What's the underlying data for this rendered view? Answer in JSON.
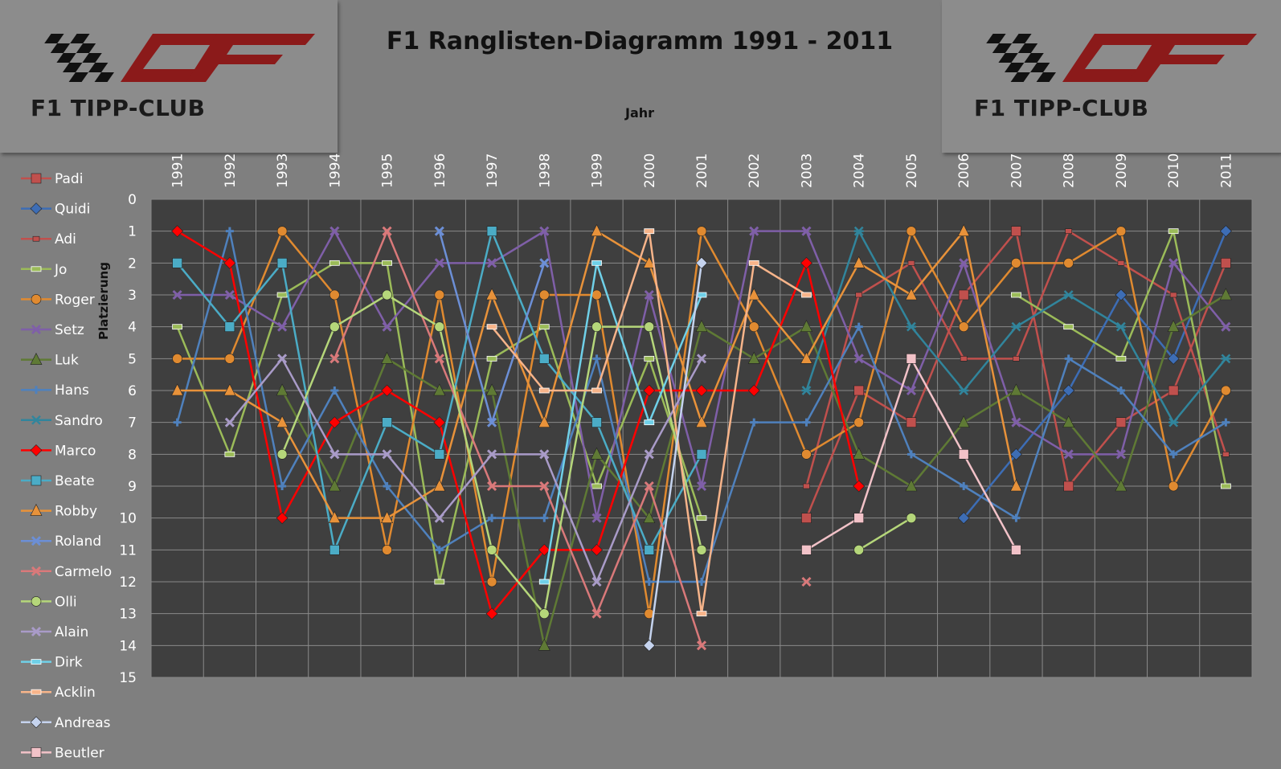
{
  "header": {
    "title": "F1 Ranglisten-Diagramm 1991 - 2011",
    "logo_text": "F1 TIPP-CLUB"
  },
  "chart_data": {
    "type": "line",
    "title": "F1 Ranglisten-Diagramm 1991 - 2011",
    "xlabel": "Jahr",
    "ylabel": "Platzierung",
    "x": [
      "1991",
      "1992",
      "1993",
      "1994",
      "1995",
      "1996",
      "1997",
      "1998",
      "1999",
      "2000",
      "2001",
      "2002",
      "2003",
      "2004",
      "2005",
      "2006",
      "2007",
      "2008",
      "2009",
      "2010",
      "2011"
    ],
    "y_ticks": [
      0,
      1,
      2,
      3,
      4,
      5,
      6,
      7,
      8,
      9,
      10,
      11,
      12,
      13,
      14,
      15
    ],
    "ylim": [
      0,
      15
    ],
    "y_inverted": true,
    "grid": true,
    "legend_position": "left",
    "series": [
      {
        "name": "Padi",
        "color": "#c0504d",
        "marker": "square",
        "values": [
          null,
          null,
          null,
          null,
          null,
          null,
          null,
          null,
          null,
          null,
          null,
          null,
          10,
          6,
          7,
          3,
          1,
          9,
          7,
          6,
          2
        ]
      },
      {
        "name": "Quidi",
        "color": "#3d6db5",
        "marker": "diamond",
        "values": [
          null,
          null,
          null,
          null,
          null,
          null,
          null,
          null,
          null,
          null,
          null,
          null,
          null,
          null,
          null,
          10,
          8,
          6,
          3,
          5,
          1
        ]
      },
      {
        "name": "Adi",
        "color": "#c0504d",
        "marker": "smallsquare",
        "values": [
          null,
          null,
          null,
          null,
          null,
          null,
          null,
          null,
          null,
          null,
          null,
          null,
          9,
          3,
          2,
          5,
          5,
          1,
          2,
          3,
          8
        ]
      },
      {
        "name": "Jo",
        "color": "#9bbb59",
        "marker": "dash",
        "values": [
          4,
          8,
          3,
          2,
          2,
          12,
          5,
          4,
          9,
          5,
          10,
          null,
          null,
          null,
          null,
          null,
          3,
          4,
          5,
          1,
          9
        ]
      },
      {
        "name": "Roger",
        "color": "#e08a30",
        "marker": "circle",
        "values": [
          5,
          5,
          1,
          3,
          11,
          3,
          12,
          3,
          3,
          13,
          1,
          4,
          8,
          7,
          1,
          4,
          2,
          2,
          1,
          9,
          6
        ]
      },
      {
        "name": "Setz",
        "color": "#7f5fa8",
        "marker": "x",
        "values": [
          3,
          3,
          4,
          1,
          4,
          2,
          2,
          1,
          10,
          3,
          9,
          1,
          1,
          5,
          6,
          2,
          7,
          8,
          8,
          2,
          4
        ]
      },
      {
        "name": "Luk",
        "color": "#5f7a35",
        "marker": "triangle",
        "values": [
          null,
          null,
          6,
          9,
          5,
          6,
          6,
          14,
          8,
          10,
          4,
          5,
          4,
          8,
          9,
          7,
          6,
          7,
          9,
          4,
          3
        ]
      },
      {
        "name": "Hans",
        "color": "#4f81bd",
        "marker": "plus",
        "values": [
          7,
          1,
          9,
          6,
          9,
          11,
          10,
          10,
          5,
          12,
          12,
          7,
          7,
          4,
          8,
          9,
          10,
          5,
          6,
          8,
          7
        ]
      },
      {
        "name": "Sandro",
        "color": "#31859c",
        "marker": "star",
        "values": [
          null,
          null,
          null,
          null,
          null,
          null,
          null,
          null,
          null,
          null,
          null,
          null,
          6,
          1,
          4,
          6,
          4,
          3,
          4,
          7,
          5
        ]
      },
      {
        "name": "Marco",
        "color": "#ff0000",
        "marker": "diamond",
        "values": [
          1,
          2,
          10,
          7,
          6,
          7,
          13,
          11,
          11,
          6,
          6,
          6,
          2,
          9,
          null,
          null,
          null,
          null,
          null,
          null,
          null
        ]
      },
      {
        "name": "Beate",
        "color": "#4bacc6",
        "marker": "square",
        "values": [
          2,
          4,
          2,
          11,
          7,
          8,
          1,
          5,
          7,
          11,
          8,
          null,
          null,
          null,
          null,
          null,
          null,
          null,
          null,
          null,
          null
        ]
      },
      {
        "name": "Robby",
        "color": "#e8923a",
        "marker": "triangle",
        "values": [
          6,
          6,
          7,
          10,
          10,
          9,
          3,
          7,
          1,
          2,
          7,
          3,
          5,
          2,
          3,
          1,
          9,
          null,
          null,
          null,
          null
        ]
      },
      {
        "name": "Roland",
        "color": "#6c8fd6",
        "marker": "x",
        "values": [
          null,
          null,
          null,
          null,
          null,
          1,
          7,
          2,
          null,
          null,
          null,
          null,
          null,
          null,
          null,
          null,
          null,
          null,
          null,
          null,
          null
        ]
      },
      {
        "name": "Carmelo",
        "color": "#d9797a",
        "marker": "x",
        "values": [
          null,
          null,
          null,
          5,
          1,
          5,
          9,
          9,
          13,
          9,
          14,
          null,
          12,
          null,
          null,
          null,
          null,
          null,
          null,
          null,
          null
        ]
      },
      {
        "name": "Olli",
        "color": "#b5d67a",
        "marker": "circle",
        "values": [
          null,
          null,
          8,
          4,
          3,
          4,
          11,
          13,
          4,
          4,
          11,
          null,
          null,
          11,
          10,
          null,
          null,
          null,
          null,
          null,
          null
        ]
      },
      {
        "name": "Alain",
        "color": "#a99bc8",
        "marker": "x",
        "values": [
          null,
          7,
          5,
          8,
          8,
          10,
          8,
          8,
          12,
          8,
          5,
          null,
          null,
          null,
          null,
          null,
          null,
          null,
          null,
          null,
          null
        ]
      },
      {
        "name": "Dirk",
        "color": "#6fd0e8",
        "marker": "dash",
        "values": [
          null,
          null,
          null,
          null,
          null,
          null,
          null,
          12,
          2,
          7,
          3,
          null,
          null,
          null,
          null,
          null,
          null,
          null,
          null,
          null,
          null
        ]
      },
      {
        "name": "Acklin",
        "color": "#f7b48a",
        "marker": "dash",
        "values": [
          null,
          null,
          null,
          null,
          null,
          null,
          4,
          6,
          6,
          1,
          13,
          2,
          3,
          null,
          null,
          null,
          null,
          null,
          null,
          null,
          null
        ]
      },
      {
        "name": "Andreas",
        "color": "#c5d3ee",
        "marker": "diamond",
        "values": [
          null,
          null,
          null,
          null,
          null,
          null,
          null,
          null,
          null,
          14,
          2,
          null,
          null,
          null,
          null,
          null,
          null,
          null,
          null,
          null,
          null
        ]
      },
      {
        "name": "Beutler",
        "color": "#f2c2c8",
        "marker": "square",
        "values": [
          null,
          null,
          null,
          null,
          null,
          null,
          null,
          null,
          null,
          null,
          null,
          null,
          11,
          10,
          5,
          8,
          11,
          null,
          null,
          null,
          null
        ]
      }
    ]
  }
}
